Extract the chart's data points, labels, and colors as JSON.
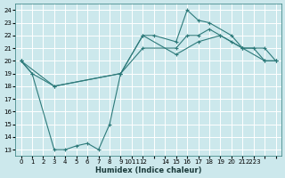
{
  "xlabel": "Humidex (Indice chaleur)",
  "bg_color": "#cce8ec",
  "grid_color": "#ffffff",
  "line_color": "#2d7a7a",
  "xlim": [
    -0.5,
    23.5
  ],
  "ylim": [
    12.5,
    24.5
  ],
  "xtick_positions": [
    0,
    1,
    2,
    3,
    4,
    5,
    6,
    7,
    8,
    9,
    10,
    11,
    12,
    13,
    14,
    15,
    16,
    17,
    18,
    19,
    20,
    21,
    22,
    23
  ],
  "xtick_labels": [
    "0",
    "1",
    "2",
    "3",
    "4",
    "5",
    "6",
    "7",
    "8",
    "9",
    "10",
    "11",
    "12",
    "",
    "14",
    "15",
    "16",
    "17",
    "18",
    "19",
    "20",
    "21",
    "2223",
    ""
  ],
  "yticks": [
    13,
    14,
    15,
    16,
    17,
    18,
    19,
    20,
    21,
    22,
    23,
    24
  ],
  "line1_x": [
    0,
    1,
    3,
    9,
    11,
    14,
    15,
    16,
    17,
    18,
    19,
    20,
    21,
    22,
    23
  ],
  "line1_y": [
    20,
    19,
    18,
    19,
    21,
    21,
    22,
    22,
    22.5,
    22,
    21.5,
    21,
    21,
    20,
    20
  ],
  "line2_x": [
    0,
    1,
    3,
    4,
    5,
    6,
    7,
    8,
    9,
    11,
    12,
    14,
    15,
    16,
    17,
    19,
    20,
    22,
    23
  ],
  "line2_y": [
    20,
    19,
    13,
    13,
    13.3,
    13.5,
    13,
    15,
    19,
    22,
    22,
    21.5,
    24,
    23.2,
    23,
    22,
    21,
    21,
    20
  ],
  "line3_x": [
    0,
    3,
    9,
    11,
    14,
    16,
    18,
    20,
    22,
    23
  ],
  "line3_y": [
    20,
    18,
    19,
    22,
    20.5,
    21.5,
    22,
    21,
    20,
    20
  ]
}
